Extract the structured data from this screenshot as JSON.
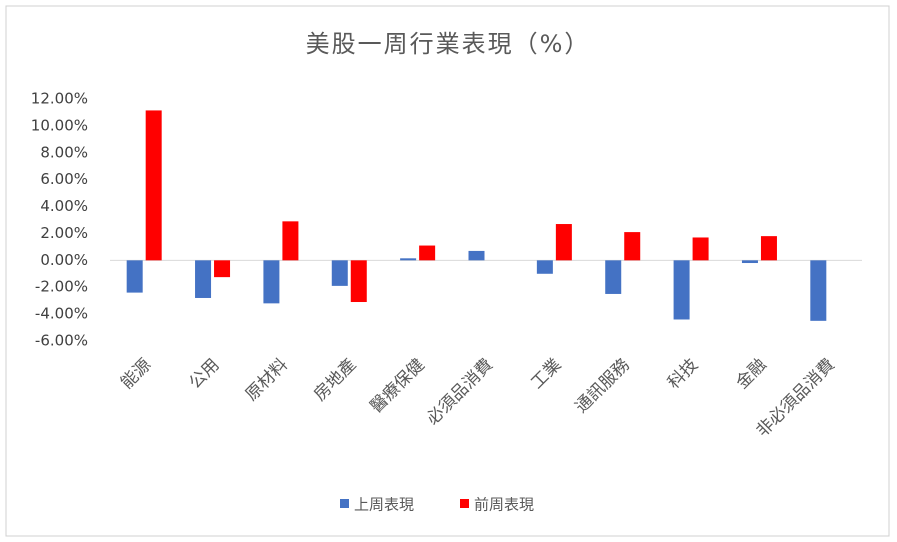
{
  "chart_data": {
    "type": "bar",
    "title": "美股一周行業表現（%）",
    "categories": [
      "能源",
      "公用",
      "原材料",
      "房地產",
      "醫療保健",
      "必須品消費",
      "工業",
      "通訊服務",
      "科技",
      "金融",
      "非必須品消費"
    ],
    "series": [
      {
        "name": "上周表現",
        "color": "#4472c4",
        "values": [
          -2.4,
          -2.8,
          -3.2,
          -1.9,
          0.15,
          0.7,
          -1.0,
          -2.5,
          -4.4,
          -0.2,
          -4.5
        ]
      },
      {
        "name": "前周表現",
        "color": "#ff0000",
        "values": [
          11.15,
          -1.25,
          2.9,
          -3.1,
          1.1,
          0,
          2.7,
          2.1,
          1.7,
          1.8,
          0
        ]
      }
    ],
    "ylim": [
      -6,
      12
    ],
    "yticks": [
      {
        "value": -6,
        "label": "-6.00%"
      },
      {
        "value": -4,
        "label": "-4.00%"
      },
      {
        "value": -2,
        "label": "-2.00%"
      },
      {
        "value": 0,
        "label": "0.00%"
      },
      {
        "value": 2,
        "label": "2.00%"
      },
      {
        "value": 4,
        "label": "4.00%"
      },
      {
        "value": 6,
        "label": "6.00%"
      },
      {
        "value": 8,
        "label": "8.00%"
      },
      {
        "value": 10,
        "label": "10.00%"
      },
      {
        "value": 12,
        "label": "12.00%"
      }
    ],
    "legend": "bottom"
  }
}
